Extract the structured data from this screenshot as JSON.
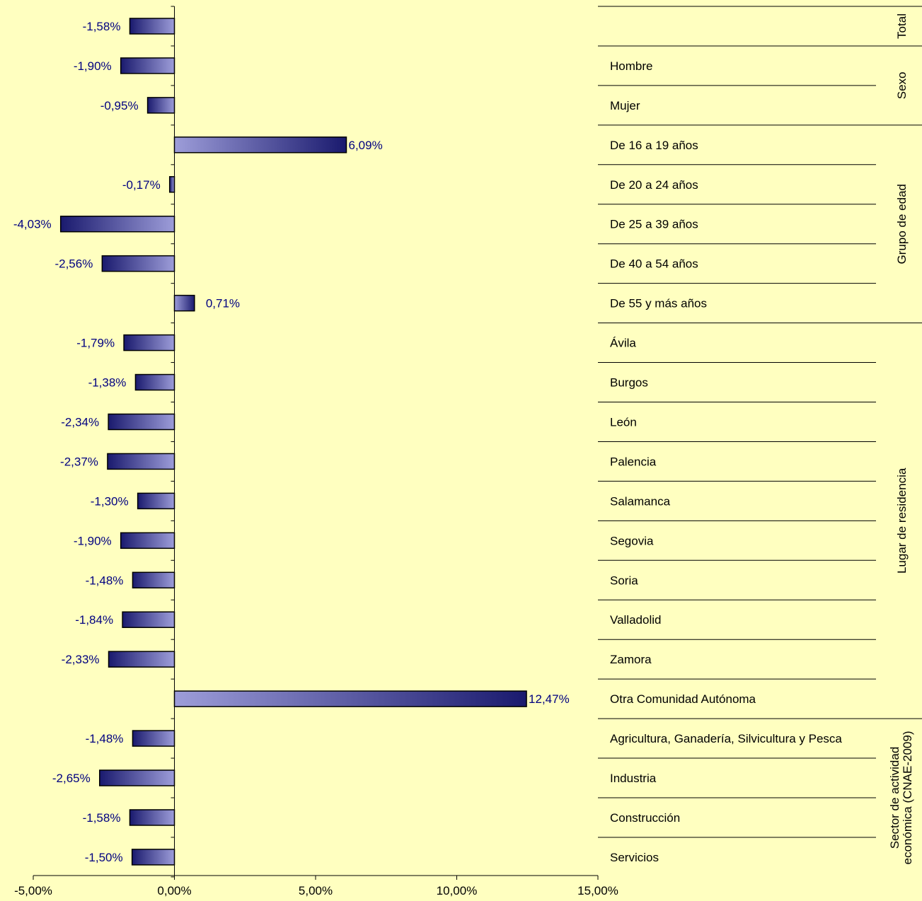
{
  "chart_data": {
    "type": "bar",
    "orientation": "horizontal",
    "title": "",
    "xlabel": "",
    "ylabel": "",
    "xlim": [
      -5,
      15
    ],
    "x_ticks": [
      "-5,00%",
      "0,00%",
      "5,00%",
      "10,00%",
      "15,00%"
    ],
    "grid": false,
    "legend": "none",
    "categories": [
      "",
      "Hombre",
      "Mujer",
      "De 16 a 19 años",
      "De 20 a 24 años",
      "De 25 a 39 años",
      "De 40 a 54 años",
      "De 55 y más años",
      "Ávila",
      "Burgos",
      "León",
      "Palencia",
      "Salamanca",
      "Segovia",
      "Soria",
      "Valladolid",
      "Zamora",
      "Otra Comunidad Autónoma",
      "Agricultura, Ganadería, Silvicultura y Pesca",
      "Industria",
      "Construcción",
      "Servicios"
    ],
    "values": [
      -1.58,
      -1.9,
      -0.95,
      6.09,
      -0.17,
      -4.03,
      -2.56,
      0.71,
      -1.79,
      -1.38,
      -2.34,
      -2.37,
      -1.3,
      -1.9,
      -1.48,
      -1.84,
      -2.33,
      12.47,
      -1.48,
      -2.65,
      -1.58,
      -1.5
    ],
    "data_labels": [
      "-1,58%",
      "-1,90%",
      "-0,95%",
      "6,09%",
      "-0,17%",
      "-4,03%",
      "-2,56%",
      "0,71%",
      "-1,79%",
      "-1,38%",
      "-2,34%",
      "-2,37%",
      "-1,30%",
      "-1,90%",
      "-1,48%",
      "-1,84%",
      "-2,33%",
      "12,47%",
      "-1,48%",
      "-2,65%",
      "-1,58%",
      "-1,50%"
    ],
    "groups": [
      {
        "label": [
          "Total"
        ],
        "start": 0,
        "end": 0
      },
      {
        "label": [
          "Sexo"
        ],
        "start": 1,
        "end": 2
      },
      {
        "label": [
          "Grupo de edad"
        ],
        "start": 3,
        "end": 7
      },
      {
        "label": [
          "Lugar de residencia"
        ],
        "start": 8,
        "end": 17
      },
      {
        "label": [
          "Sector de actividad",
          "económica (CNAE-2009)"
        ],
        "start": 18,
        "end": 21
      }
    ],
    "colors": {
      "background": "#ffffc0",
      "bar_dark": "#1a1a6e",
      "bar_light": "#9d9dd9",
      "label": "#000080",
      "axis": "#000000"
    }
  }
}
